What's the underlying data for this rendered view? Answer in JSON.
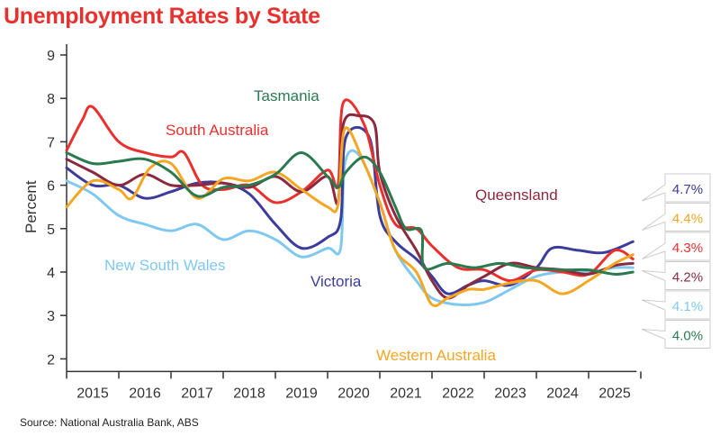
{
  "title": "Unemployment Rates by State",
  "source": "Source: National Australia Bank, ABS",
  "chart_data": {
    "type": "line",
    "title": "Unemployment Rates by State",
    "xlabel": "",
    "ylabel": "Percent",
    "xlim": [
      2015,
      2026
    ],
    "ylim": [
      2,
      9
    ],
    "yticks": [
      "2",
      "3",
      "4",
      "5",
      "6",
      "7",
      "8",
      "9"
    ],
    "xticks": [
      "2015",
      "2016",
      "2017",
      "2018",
      "2019",
      "2020",
      "2021",
      "2022",
      "2023",
      "2024",
      "2025"
    ],
    "grid": false,
    "series": [
      {
        "name": "New South Wales",
        "color": "#7fc8f0",
        "end_label": "4.1%",
        "x": [
          2015,
          2015.5,
          2016,
          2016.5,
          2017,
          2017.5,
          2018,
          2018.5,
          2019,
          2019.5,
          2020,
          2020.25,
          2020.33,
          2020.6,
          2021,
          2021.3,
          2021.7,
          2022,
          2022.5,
          2023,
          2023.5,
          2024,
          2024.5,
          2025,
          2025.5,
          2025.85
        ],
        "y": [
          6.1,
          5.8,
          5.3,
          5.1,
          4.95,
          5.1,
          4.75,
          4.95,
          4.75,
          4.35,
          4.55,
          4.55,
          6.5,
          6.7,
          5.6,
          4.5,
          3.8,
          3.4,
          3.25,
          3.3,
          3.6,
          3.9,
          4.0,
          4.0,
          4.1,
          4.1
        ]
      },
      {
        "name": "Victoria",
        "color": "#3c3c9c",
        "end_label": "4.7%",
        "x": [
          2015,
          2015.5,
          2016,
          2016.5,
          2017,
          2017.5,
          2018,
          2018.5,
          2019,
          2019.5,
          2020,
          2020.25,
          2020.35,
          2020.8,
          2021,
          2021.3,
          2021.7,
          2022,
          2022.3,
          2022.7,
          2023,
          2023.5,
          2024,
          2024.3,
          2024.8,
          2025.3,
          2025.85
        ],
        "y": [
          6.4,
          6.0,
          6.0,
          5.7,
          5.85,
          6.05,
          6.05,
          5.8,
          5.1,
          4.55,
          4.8,
          5.2,
          7.1,
          7.1,
          5.3,
          4.7,
          4.3,
          3.9,
          3.5,
          3.7,
          3.8,
          3.7,
          4.1,
          4.55,
          4.5,
          4.45,
          4.7
        ]
      },
      {
        "name": "South Australia",
        "color": "#e8312e",
        "end_label": "4.3%",
        "x": [
          2015,
          2015.3,
          2015.5,
          2016,
          2016.5,
          2017,
          2017.25,
          2017.6,
          2018,
          2018.5,
          2019,
          2019.5,
          2020,
          2020.2,
          2020.3,
          2020.7,
          2021,
          2021.3,
          2021.7,
          2022,
          2022.5,
          2023,
          2023.5,
          2024,
          2024.5,
          2025,
          2025.5,
          2025.85
        ],
        "y": [
          6.8,
          7.5,
          7.8,
          7.0,
          6.75,
          6.65,
          6.75,
          6.0,
          5.9,
          6.0,
          5.6,
          5.85,
          6.35,
          6.0,
          7.9,
          7.4,
          6.0,
          5.1,
          5.0,
          4.6,
          4.1,
          4.05,
          3.8,
          4.05,
          4.0,
          3.95,
          4.5,
          4.3
        ]
      },
      {
        "name": "Queensland",
        "color": "#8b2a3e",
        "end_label": "4.2%",
        "x": [
          2015,
          2015.5,
          2016,
          2016.5,
          2017,
          2017.5,
          2018,
          2018.5,
          2019,
          2019.5,
          2020,
          2020.2,
          2020.3,
          2020.6,
          2020.9,
          2021,
          2021.3,
          2021.7,
          2022,
          2022.3,
          2022.7,
          2023,
          2023.5,
          2024,
          2024.5,
          2025,
          2025.5,
          2025.85
        ],
        "y": [
          6.6,
          6.3,
          6.0,
          6.25,
          6.0,
          6.0,
          6.05,
          5.95,
          6.2,
          5.85,
          6.2,
          5.6,
          7.4,
          7.6,
          7.4,
          6.3,
          5.3,
          4.5,
          3.8,
          3.4,
          3.7,
          3.9,
          4.2,
          4.1,
          4.05,
          3.95,
          4.15,
          4.2
        ]
      },
      {
        "name": "Western Australia",
        "color": "#f5a623",
        "end_label": "4.4%",
        "x": [
          2015,
          2015.5,
          2016,
          2016.25,
          2016.6,
          2017,
          2017.5,
          2018,
          2018.5,
          2019,
          2019.5,
          2020,
          2020.2,
          2020.33,
          2020.7,
          2021,
          2021.3,
          2021.7,
          2022,
          2022.3,
          2022.7,
          2023,
          2023.5,
          2024,
          2024.5,
          2025,
          2025.5,
          2025.85
        ],
        "y": [
          5.5,
          6.1,
          5.9,
          5.7,
          6.4,
          6.5,
          5.7,
          6.15,
          6.1,
          6.3,
          5.9,
          5.5,
          5.55,
          7.3,
          6.5,
          5.6,
          4.5,
          4.0,
          3.25,
          3.4,
          3.6,
          3.6,
          3.75,
          3.8,
          3.5,
          3.8,
          4.2,
          4.4
        ]
      },
      {
        "name": "Tasmania",
        "color": "#2a7a50",
        "end_label": "4.0%",
        "x": [
          2015,
          2015.5,
          2016,
          2016.5,
          2017,
          2017.5,
          2018,
          2018.5,
          2019,
          2019.5,
          2020,
          2020.2,
          2020.35,
          2020.7,
          2021,
          2021.3,
          2021.5,
          2021.8,
          2021.85,
          2022.3,
          2022.8,
          2023.3,
          2023.8,
          2024.5,
          2025,
          2025.5,
          2025.85
        ],
        "y": [
          6.75,
          6.5,
          6.55,
          6.6,
          6.3,
          5.75,
          5.95,
          6.0,
          6.25,
          6.75,
          6.2,
          5.95,
          6.3,
          6.65,
          6.3,
          5.5,
          5.0,
          4.95,
          4.1,
          4.2,
          4.1,
          4.2,
          4.1,
          4.05,
          4.05,
          3.95,
          4.0
        ]
      }
    ]
  }
}
